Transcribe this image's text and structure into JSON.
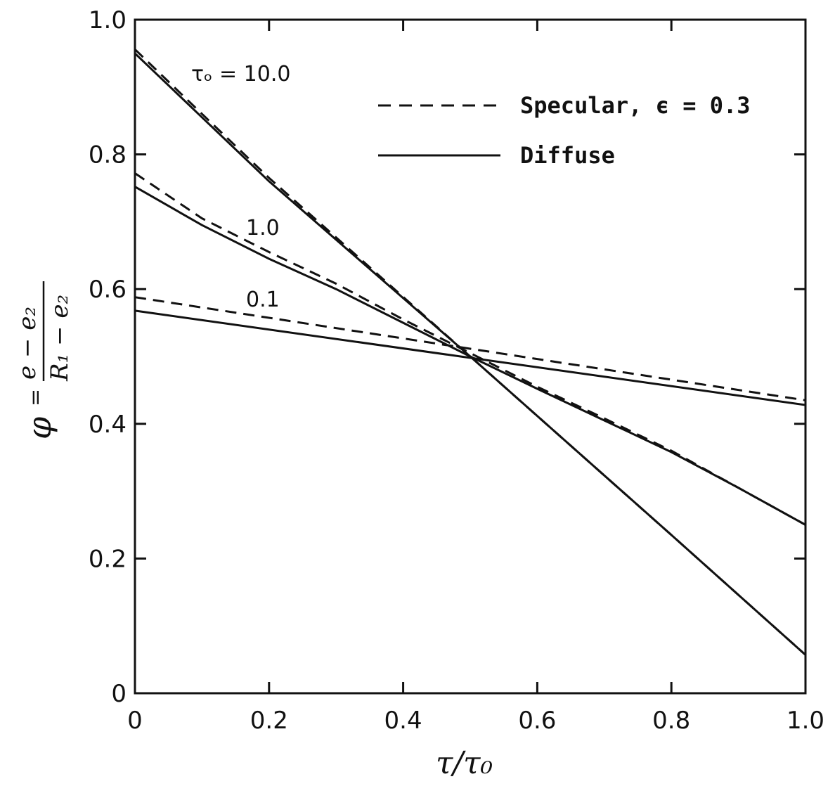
{
  "chart_data": {
    "type": "line",
    "xlabel": "τ/τ₀",
    "ylabel": {
      "symbol": "φ",
      "equals": "=",
      "numerator": "e − e₂",
      "denominator": "R₁ − e₂"
    },
    "xlim": [
      0,
      1.0
    ],
    "ylim": [
      0,
      1.0
    ],
    "x_ticks": [
      "0",
      "0.2",
      "0.4",
      "0.6",
      "0.8",
      "1.0"
    ],
    "y_ticks": [
      "0",
      "0.2",
      "0.4",
      "0.6",
      "0.8",
      "1.0"
    ],
    "grid": false,
    "legend": {
      "placement": "top-right",
      "entries": [
        {
          "label": "Specular,  ϵ = 0.3",
          "style": "dashed"
        },
        {
          "label": "Diffuse",
          "style": "solid"
        }
      ]
    },
    "curve_labels": [
      {
        "text": "τₒ = 10.0",
        "series": "tau10"
      },
      {
        "text": "1.0",
        "series": "tau1"
      },
      {
        "text": "0.1",
        "series": "tau01"
      }
    ],
    "series": [
      {
        "key": "tau10_specular",
        "style": "dashed",
        "x": [
          0,
          0.1,
          0.2,
          0.5,
          0.8,
          1.0
        ],
        "y": [
          0.956,
          0.86,
          0.765,
          0.5,
          0.235,
          0.057
        ]
      },
      {
        "key": "tau10_diffuse",
        "style": "solid",
        "x": [
          0,
          0.1,
          0.2,
          0.5,
          0.8,
          1.0
        ],
        "y": [
          0.95,
          0.855,
          0.76,
          0.5,
          0.235,
          0.057
        ]
      },
      {
        "key": "tau1_specular",
        "style": "dashed",
        "x": [
          0,
          0.1,
          0.2,
          0.3,
          0.4,
          0.5,
          0.6,
          0.7,
          0.8,
          0.9,
          1.0
        ],
        "y": [
          0.772,
          0.705,
          0.655,
          0.608,
          0.555,
          0.505,
          0.455,
          0.408,
          0.36,
          0.305,
          0.25
        ]
      },
      {
        "key": "tau1_diffuse",
        "style": "solid",
        "x": [
          0,
          0.1,
          0.2,
          0.3,
          0.4,
          0.5,
          0.6,
          0.7,
          0.8,
          0.9,
          1.0
        ],
        "y": [
          0.752,
          0.695,
          0.645,
          0.6,
          0.55,
          0.5,
          0.452,
          0.405,
          0.358,
          0.305,
          0.25
        ]
      },
      {
        "key": "tau01_specular",
        "style": "dashed",
        "x": [
          0,
          1.0
        ],
        "y": [
          0.588,
          0.435
        ]
      },
      {
        "key": "tau01_diffuse",
        "style": "solid",
        "x": [
          0,
          1.0
        ],
        "y": [
          0.568,
          0.428
        ]
      }
    ]
  }
}
